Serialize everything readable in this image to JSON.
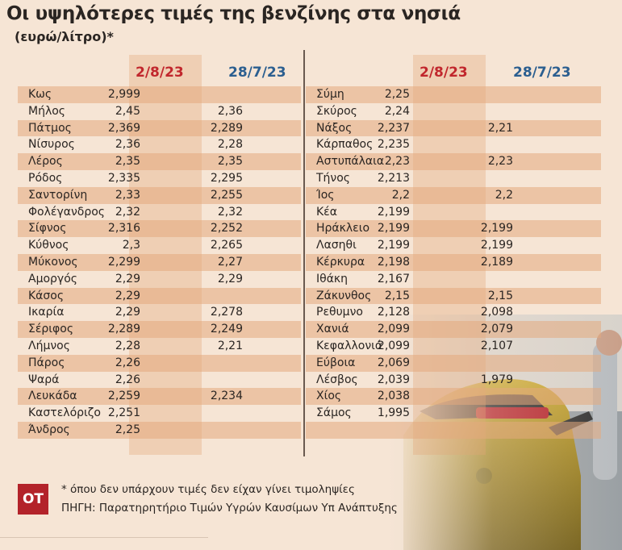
{
  "title": "Οι υψηλότερες τιμές της βενζίνης στα νησιά",
  "subtitle": "(ευρώ/λίτρο)*",
  "colors": {
    "current": "#c1272d",
    "previous": "#2c5f90",
    "logo": "#b3232a"
  },
  "chart_data": {
    "type": "table",
    "title": "Οι υψηλότερες τιμές της βενζίνης στα νησιά",
    "columns": [
      "",
      "2/8/23",
      "28/7/23"
    ],
    "tables": [
      {
        "rows": [
          [
            "Κως",
            "2,999",
            ""
          ],
          [
            "Μήλος",
            "2,45",
            "2,36"
          ],
          [
            "Πάτμος",
            "2,369",
            "2,289"
          ],
          [
            "Νίσυρος",
            "2,36",
            "2,28"
          ],
          [
            "Λέρος",
            "2,35",
            "2,35"
          ],
          [
            "Ρόδος",
            "2,335",
            "2,295"
          ],
          [
            "Σαντορίνη",
            "2,33",
            "2,255"
          ],
          [
            "Φολέγανδρος",
            "2,32",
            "2,32"
          ],
          [
            "Σίφνος",
            "2,316",
            "2,252"
          ],
          [
            "Κύθνος",
            "2,3",
            "2,265"
          ],
          [
            "Μύκονος",
            "2,299",
            "2,27"
          ],
          [
            "Αμοργός",
            "2,29",
            "2,29"
          ],
          [
            "Κάσος",
            "2,29",
            ""
          ],
          [
            "Ικαρία",
            "2,29",
            "2,278"
          ],
          [
            "Σέριφος",
            "2,289",
            "2,249"
          ],
          [
            "Λήμνος",
            "2,28",
            "2,21"
          ],
          [
            "Πάρος",
            "2,26",
            ""
          ],
          [
            "Ψαρά",
            "2,26",
            ""
          ],
          [
            "Λευκάδα",
            "2,259",
            "2,234"
          ],
          [
            "Καστελόριζο",
            "2,251",
            ""
          ],
          [
            "Άνδρος",
            "2,25",
            ""
          ]
        ]
      },
      {
        "rows": [
          [
            "Σύμη",
            "2,25",
            ""
          ],
          [
            "Σκύρος",
            "2,24",
            ""
          ],
          [
            "Νάξος",
            "2,237",
            "2,21"
          ],
          [
            "Κάρπαθος",
            "2,235",
            ""
          ],
          [
            "Αστυπάλαια",
            "2,23",
            "2,23"
          ],
          [
            "Τήνος",
            "2,213",
            ""
          ],
          [
            "Ίος",
            "2,2",
            "2,2"
          ],
          [
            "Κέα",
            "2,199",
            ""
          ],
          [
            "Ηράκλειο",
            "2,199",
            "2,199"
          ],
          [
            "Λασηθι",
            "2,199",
            "2,199"
          ],
          [
            "Κέρκυρα",
            "2,198",
            "2,189"
          ],
          [
            "Ιθάκη",
            "2,167",
            ""
          ],
          [
            "Ζάκυνθος",
            "2,15",
            "2,15"
          ],
          [
            "Ρεθυμνο",
            "2,128",
            "2,098"
          ],
          [
            "Χανιά",
            "2,099",
            "2,079"
          ],
          [
            "Κεφαλλονιά",
            "2,099",
            "2,107"
          ],
          [
            "Εύβοια",
            "2,069",
            ""
          ],
          [
            "Λέσβος",
            "2,039",
            "1,979"
          ],
          [
            "Χίος",
            "2,038",
            ""
          ],
          [
            "Σάμος",
            "1,995",
            ""
          ],
          [
            "",
            "",
            " "
          ]
        ]
      }
    ]
  },
  "footer": {
    "logo": "OT",
    "note": "* όπου δεν υπάρχουν τιμές δεν είχαν γίνει τιμοληψίες",
    "source": "ΠΗΓΗ: Παρατηρητήριο Τιμών Υγρών Καυσίμων Υπ Ανάπτυξης"
  }
}
